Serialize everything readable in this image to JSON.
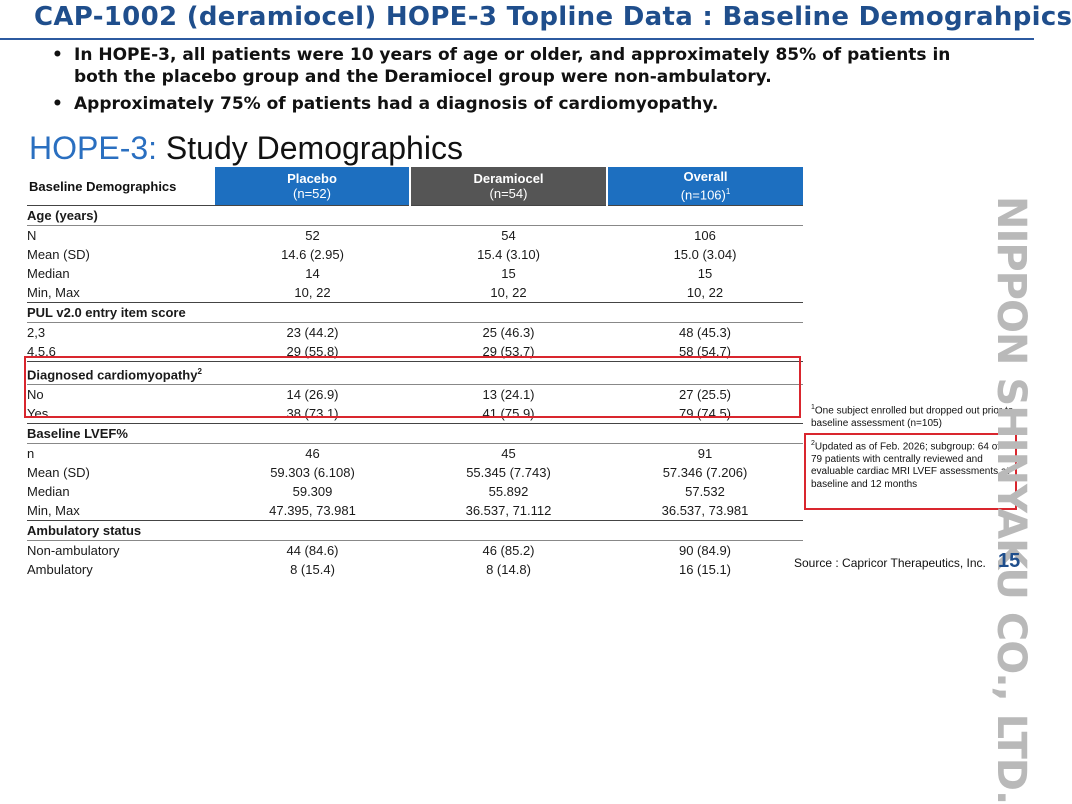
{
  "header": {
    "title": "CAP-1002 (deramiocel) HOPE-3 Topline Data : Baseline Demograhpics"
  },
  "bullets": [
    "In HOPE-3, all patients were 10 years of age or older, and approximately 85% of patients in both the placebo group and the Deramiocel group were non-ambulatory.",
    "Approximately 75% of patients had a diagnosis of cardiomyopathy."
  ],
  "subtitle": {
    "accent": "HOPE-3:",
    "rest": " Study Demographics"
  },
  "table": {
    "header_label": "Baseline Demographics",
    "columns": [
      {
        "name": "Placebo",
        "n": "(n=52)",
        "sup": ""
      },
      {
        "name": "Deramiocel",
        "n": "(n=54)",
        "sup": ""
      },
      {
        "name": "Overall",
        "n": "(n=106)",
        "sup": "1"
      }
    ],
    "sections": {
      "age": {
        "title": "Age (years)",
        "rows": [
          {
            "label": "N",
            "values": [
              "52",
              "54",
              "106"
            ]
          },
          {
            "label": "Mean (SD)",
            "values": [
              "14.6 (2.95)",
              "15.4 (3.10)",
              "15.0 (3.04)"
            ]
          },
          {
            "label": "Median",
            "values": [
              "14",
              "15",
              "15"
            ]
          },
          {
            "label": "Min, Max",
            "values": [
              "10, 22",
              "10, 22",
              "10, 22"
            ]
          }
        ]
      },
      "pul": {
        "title": "PUL v2.0 entry item score",
        "rows": [
          {
            "label": "2,3",
            "values": [
              "23 (44.2)",
              "25 (46.3)",
              "48 (45.3)"
            ]
          },
          {
            "label": "4,5,6",
            "values": [
              "29 (55.8)",
              "29 (53.7)",
              "58 (54.7)"
            ]
          }
        ]
      },
      "cardio": {
        "title": "Diagnosed cardiomyopathy",
        "sup": "2",
        "rows": [
          {
            "label": "No",
            "values": [
              "14 (26.9)",
              "13 (24.1)",
              "27 (25.5)"
            ]
          },
          {
            "label": "Yes",
            "values": [
              "38 (73.1)",
              "41 (75.9)",
              "79 (74.5)"
            ]
          }
        ]
      },
      "lvef": {
        "title": "Baseline LVEF%",
        "rows": [
          {
            "label": "n",
            "values": [
              "46",
              "45",
              "91"
            ]
          },
          {
            "label": "Mean (SD)",
            "values": [
              "59.303 (6.108)",
              "55.345 (7.743)",
              "57.346 (7.206)"
            ]
          },
          {
            "label": "Median",
            "values": [
              "59.309",
              "55.892",
              "57.532"
            ]
          },
          {
            "label": "Min, Max",
            "values": [
              "47.395, 73.981",
              "36.537, 71.112",
              "36.537, 73.981"
            ]
          }
        ]
      },
      "amb": {
        "title": "Ambulatory status",
        "rows": [
          {
            "label": "Non-ambulatory",
            "values": [
              "44 (84.6)",
              "46 (85.2)",
              "90 (84.9)"
            ]
          },
          {
            "label": "Ambulatory",
            "values": [
              "8 (15.4)",
              "8 (14.8)",
              "16 (15.1)"
            ]
          }
        ]
      }
    }
  },
  "footnotes": {
    "fn1_mark": "1",
    "fn1_text": "One subject enrolled but dropped out prior to baseline assessment (n=105)",
    "fn2_mark": "2",
    "fn2_text": "Updated as of Feb. 2026; subgroup: 64 of 79 patients with centrally reviewed and evaluable cardiac MRI LVEF assessments at baseline and 12 months"
  },
  "watermark": "NIPPON SHINYAKU CO., LTD.",
  "source": "Source : Capricor Therapeutics, Inc.",
  "page_number": "15",
  "colors": {
    "title_blue": "#1f4e8c",
    "header_blue": "#1d6fc0",
    "header_gray": "#555555",
    "highlight_red": "#d9262e"
  }
}
